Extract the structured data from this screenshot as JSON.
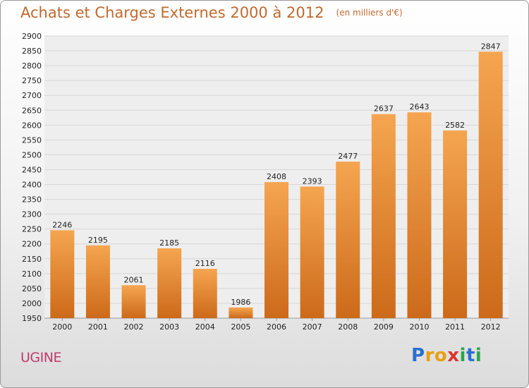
{
  "header": {
    "title": "Achats et Charges Externes 2000 à 2012",
    "unit": "(en milliers d'€)"
  },
  "footer": {
    "place": "UGINE",
    "logo_letters": [
      "P",
      "r",
      "o",
      "x",
      "i",
      "t",
      "i"
    ],
    "logo_colors": [
      "#2a6fd0",
      "#e8a012",
      "#e8a012",
      "#d9342b",
      "#2aa64a",
      "#2a6fd0",
      "#2aa64a"
    ]
  },
  "colors": {
    "bar_top": "#f5a550",
    "bar_bottom": "#cc6a1a",
    "grid": "#d6d6d6",
    "plot_bg": "#eeeeee"
  },
  "chart_data": {
    "type": "bar",
    "categories": [
      "2000",
      "2001",
      "2002",
      "2003",
      "2004",
      "2005",
      "2006",
      "2007",
      "2008",
      "2009",
      "2010",
      "2011",
      "2012"
    ],
    "values": [
      2246,
      2195,
      2061,
      2185,
      2116,
      1986,
      2408,
      2393,
      2477,
      2637,
      2643,
      2582,
      2847
    ],
    "title": "Achats et Charges Externes 2000 à 2012",
    "ylim": [
      1950,
      2900
    ],
    "ytick_step": 50,
    "grid": true
  }
}
